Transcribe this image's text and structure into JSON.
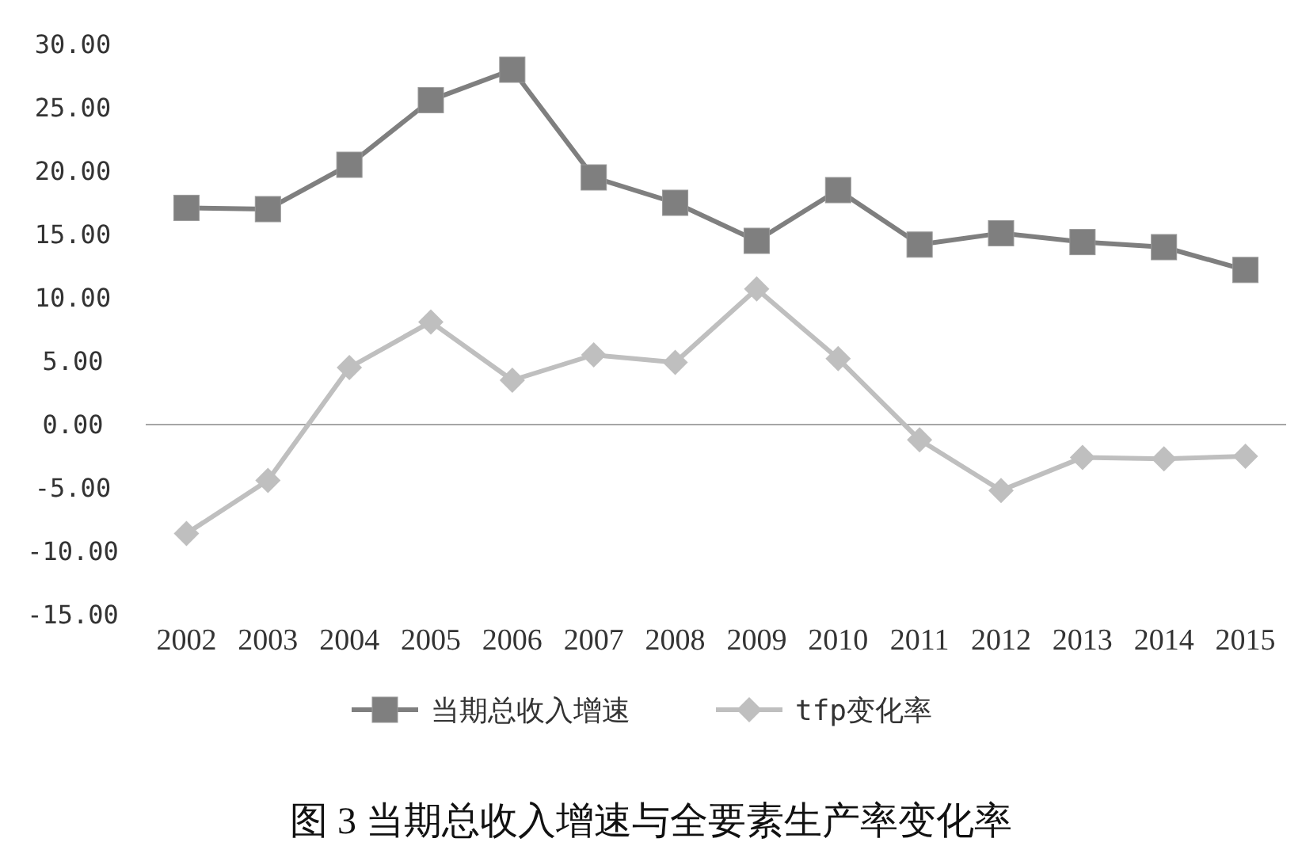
{
  "chart_data": {
    "type": "line",
    "title": "图 3 当期总收入增速与全要素生产率变化率",
    "categories": [
      "2002",
      "2003",
      "2004",
      "2005",
      "2006",
      "2007",
      "2008",
      "2009",
      "2010",
      "2011",
      "2012",
      "2013",
      "2014",
      "2015"
    ],
    "series": [
      {
        "name": "当期总收入增速",
        "color": "#7f7f7f",
        "marker": "square",
        "values": [
          17.1,
          17.0,
          20.5,
          25.6,
          28.0,
          19.5,
          17.5,
          14.5,
          18.5,
          14.2,
          15.1,
          14.4,
          14.0,
          12.2
        ]
      },
      {
        "name": "tfp变化率",
        "color": "#bfbfbf",
        "marker": "diamond",
        "values": [
          -8.6,
          -4.4,
          4.5,
          8.1,
          3.5,
          5.5,
          4.9,
          10.7,
          5.2,
          -1.2,
          -5.2,
          -2.6,
          -2.7,
          -2.5
        ]
      }
    ],
    "ylim": [
      -15,
      30
    ],
    "yticks": [
      {
        "value": 30,
        "label": "30.00"
      },
      {
        "value": 25,
        "label": "25.00"
      },
      {
        "value": 20,
        "label": "20.00"
      },
      {
        "value": 15,
        "label": "15.00"
      },
      {
        "value": 10,
        "label": "10.00"
      },
      {
        "value": 5,
        "label": "5.00"
      },
      {
        "value": 0,
        "label": "0.00"
      },
      {
        "value": -5,
        "label": "-5.00"
      },
      {
        "value": -10,
        "label": "-10.00"
      },
      {
        "value": -15,
        "label": "-15.00"
      }
    ],
    "ref_lines": [
      {
        "axis": "y",
        "value": 0,
        "color": "#a6a6a6"
      }
    ],
    "grid": false,
    "legend": "bottom",
    "line_style": "solid"
  }
}
